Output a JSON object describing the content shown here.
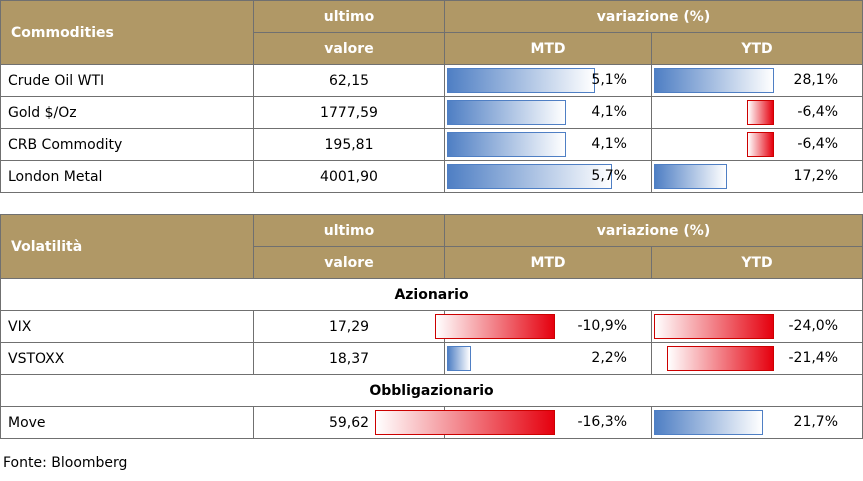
{
  "commodities": {
    "header": {
      "label": "Commodities",
      "last_line1": "ultimo",
      "last_line2": "valore",
      "change": "variazione (%)",
      "mtd": "MTD",
      "ytd": "YTD"
    },
    "rows": [
      {
        "name": "Crude Oil WTI",
        "value": "62,15",
        "mtd": "5,1%",
        "mtd_num": 5.1,
        "ytd": "28,1%",
        "ytd_num": 28.1
      },
      {
        "name": "Gold $/Oz",
        "value": "1777,59",
        "mtd": "4,1%",
        "mtd_num": 4.1,
        "ytd": "-6,4%",
        "ytd_num": -6.4
      },
      {
        "name": "CRB Commodity",
        "value": "195,81",
        "mtd": "4,1%",
        "mtd_num": 4.1,
        "ytd": "-6,4%",
        "ytd_num": -6.4
      },
      {
        "name": "London Metal",
        "value": "4001,90",
        "mtd": "5,7%",
        "mtd_num": 5.7,
        "ytd": "17,2%",
        "ytd_num": 17.2
      }
    ]
  },
  "volatility": {
    "header": {
      "label": "Volatilità",
      "last_line1": "ultimo",
      "last_line2": "valore",
      "change": "variazione (%)",
      "mtd": "MTD",
      "ytd": "YTD"
    },
    "section1": "Azionario",
    "rows1": [
      {
        "name": "VIX",
        "value": "17,29",
        "mtd": "-10,9%",
        "mtd_num": -10.9,
        "ytd": "-24,0%",
        "ytd_num": -24.0
      },
      {
        "name": "VSTOXX",
        "value": "18,37",
        "mtd": "2,2%",
        "mtd_num": 2.2,
        "ytd": "-21,4%",
        "ytd_num": -21.4
      }
    ],
    "section2": "Obbligazionario",
    "rows2": [
      {
        "name": "Move",
        "value": "59,62",
        "mtd": "-16,3%",
        "mtd_num": -16.3,
        "ytd": "21,7%",
        "ytd_num": 21.7
      }
    ]
  },
  "colors": {
    "header_bg": "#b09866",
    "positive_bar": "#4f7fc4",
    "negative_bar": "#e5000e"
  },
  "source": "Fonte: Bloomberg"
}
